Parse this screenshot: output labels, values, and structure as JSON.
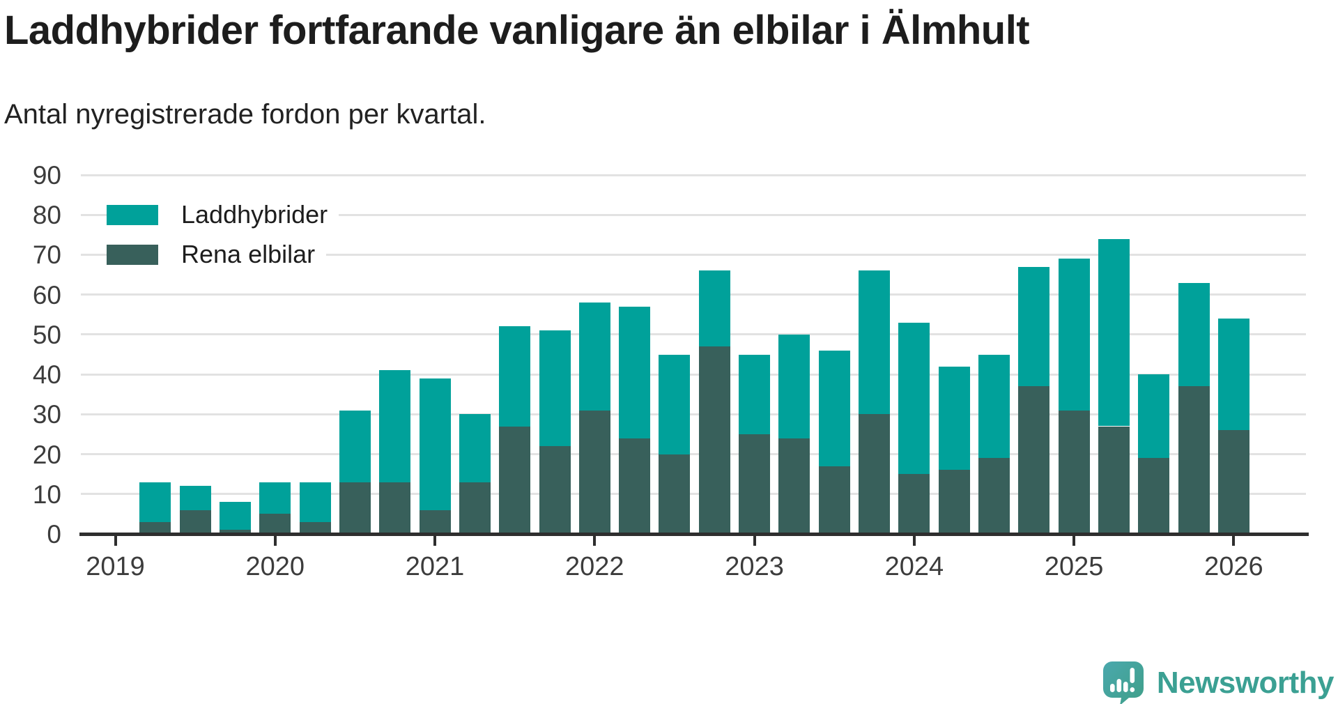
{
  "header": {
    "title": "Laddhybrider fortfarande vanligare än elbilar i Älmhult",
    "subtitle": "Antal nyregistrerade fordon per kvartal."
  },
  "legend": {
    "items": [
      {
        "label": "Laddhybrider",
        "color": "#00a19a"
      },
      {
        "label": "Rena elbilar",
        "color": "#38605b"
      }
    ]
  },
  "branding": {
    "name": "Newsworthy",
    "text_color": "#3ba093",
    "icon": "newsworthy-speech-bubble-chart-icon",
    "icon_gradient": [
      "#4aa8ad",
      "#3f9f88"
    ]
  },
  "chart_data": {
    "type": "bar",
    "stacked": true,
    "title": "Laddhybrider fortfarande vanligare än elbilar i Älmhult",
    "subtitle": "Antal nyregistrerade fordon per kvartal.",
    "xlabel": "",
    "ylabel": "",
    "ylim": [
      0,
      90
    ],
    "y_ticks": [
      0,
      10,
      20,
      30,
      40,
      50,
      60,
      70,
      80,
      90
    ],
    "x_ticks": [
      "2019",
      "2020",
      "2021",
      "2022",
      "2023",
      "2024",
      "2025",
      "2026"
    ],
    "grid": true,
    "legend_position": "top-left-inside",
    "categories": [
      "2019-Q2",
      "2019-Q3",
      "2019-Q4",
      "2020-Q1",
      "2020-Q2",
      "2020-Q3",
      "2020-Q4",
      "2021-Q1",
      "2021-Q2",
      "2021-Q3",
      "2021-Q4",
      "2022-Q1",
      "2022-Q2",
      "2022-Q3",
      "2022-Q4",
      "2023-Q1",
      "2023-Q2",
      "2023-Q3",
      "2023-Q4",
      "2024-Q1",
      "2024-Q2",
      "2024-Q3",
      "2024-Q4",
      "2025-Q1",
      "2025-Q2",
      "2025-Q3",
      "2025-Q4",
      "2026-Q1"
    ],
    "series": [
      {
        "name": "Rena elbilar",
        "color": "#38605b",
        "stack_position": "bottom",
        "values": [
          3,
          6,
          1,
          5,
          3,
          13,
          13,
          6,
          13,
          27,
          22,
          31,
          24,
          20,
          47,
          25,
          24,
          17,
          30,
          15,
          16,
          19,
          37,
          31,
          27,
          19,
          37,
          26
        ]
      },
      {
        "name": "Laddhybrider",
        "color": "#00a19a",
        "stack_position": "top",
        "values": [
          10,
          6,
          7,
          8,
          10,
          18,
          28,
          33,
          17,
          25,
          29,
          27,
          33,
          25,
          19,
          20,
          26,
          29,
          36,
          38,
          26,
          26,
          30,
          38,
          47,
          21,
          26,
          28
        ]
      }
    ],
    "totals": [
      13,
      12,
      8,
      13,
      13,
      31,
      41,
      39,
      30,
      52,
      51,
      58,
      57,
      45,
      66,
      45,
      50,
      46,
      66,
      53,
      42,
      45,
      67,
      69,
      74,
      40,
      63,
      54
    ]
  }
}
